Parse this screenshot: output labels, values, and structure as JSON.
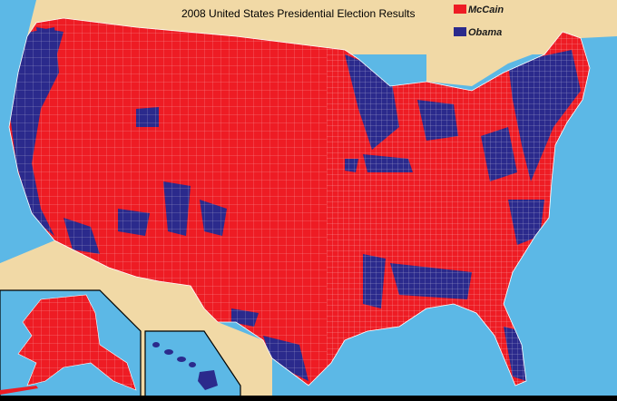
{
  "title": "2008 United States Presidential Election Results",
  "legend": [
    {
      "label": "McCain",
      "color": "#ee1c24"
    },
    {
      "label": "Obama",
      "color": "#2b2a8c"
    }
  ],
  "colors": {
    "ocean": "#5cb8e6",
    "land_foreign": "#f1d9a6",
    "border": "#ffffff"
  },
  "insets": [
    "alaska-inset",
    "hawaii-inset"
  ]
}
